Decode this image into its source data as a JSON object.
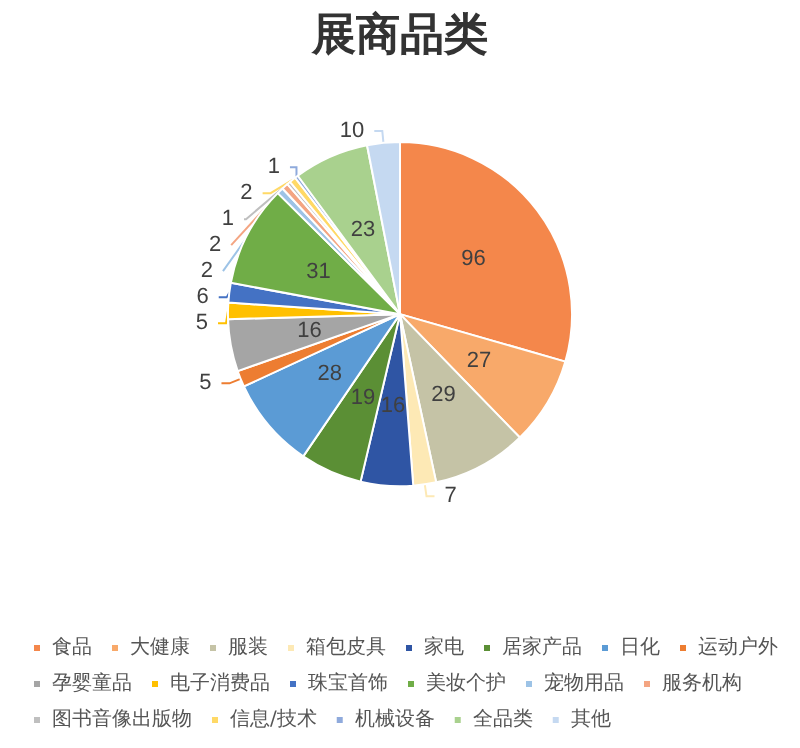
{
  "chart_data": {
    "type": "pie",
    "title": "展商品类",
    "categories": [
      "食品",
      "大健康",
      "服装",
      "箱包皮具",
      "家电",
      "居家产品",
      "日化",
      "运动户外",
      "孕婴童品",
      "电子消费品",
      "珠宝首饰",
      "美妆个护",
      "宠物用品",
      "服务机构",
      "图书音像出版物",
      "信息/技术",
      "机械设备",
      "全品类",
      "其他"
    ],
    "values": [
      96,
      27,
      29,
      7,
      16,
      19,
      28,
      5,
      16,
      5,
      6,
      31,
      2,
      2,
      1,
      2,
      1,
      23,
      10
    ],
    "colors": [
      "#f4874b",
      "#f8a96a",
      "#c5c3a6",
      "#fde9b5",
      "#2f55a4",
      "#5b8f35",
      "#5b9bd5",
      "#ed7d31",
      "#a5a5a5",
      "#ffc000",
      "#4472c4",
      "#70ad47",
      "#9dc3e6",
      "#f4a582",
      "#bfbfbf",
      "#ffd966",
      "#8faadc",
      "#a9d18e",
      "#c5d9f1"
    ],
    "data_labels": true,
    "legend": "bottom"
  }
}
